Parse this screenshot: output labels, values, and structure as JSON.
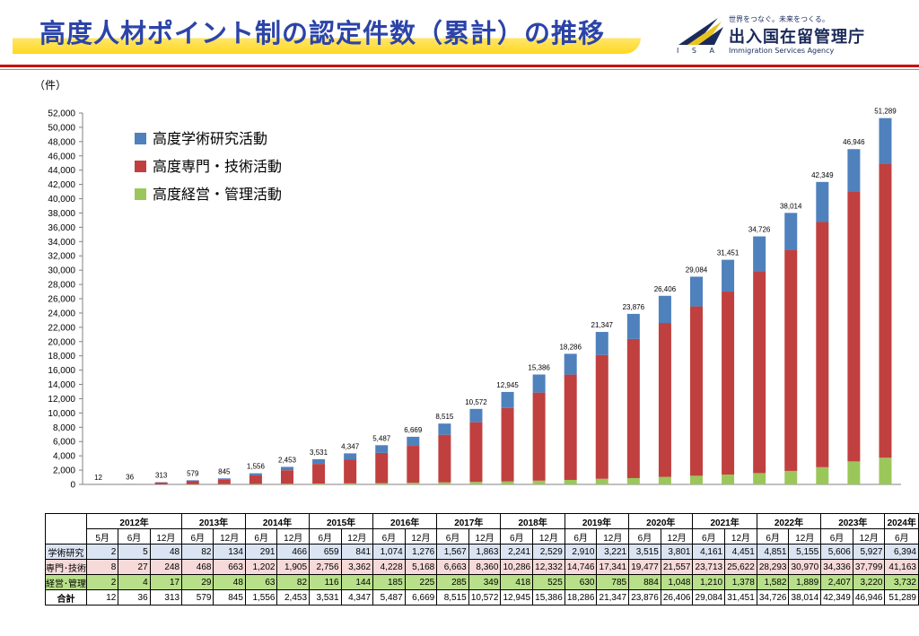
{
  "header": {
    "title": "高度人材ポイント制の認定件数（累計）の推移",
    "logo_isa": "I S A",
    "logo_tagline": "世界をつなぐ。未来をつくる。",
    "logo_name": "出入国在留管理庁",
    "logo_english": "Immigration Services Agency"
  },
  "unit_label": "（件）",
  "chart_data": {
    "type": "bar",
    "stacked": true,
    "ylim": [
      0,
      52000
    ],
    "ytick_step": 2000,
    "grid": false,
    "legend_position": "top-left",
    "categories": [
      "2012-5",
      "2012-6",
      "2012-12",
      "2013-6",
      "2013-12",
      "2014-6",
      "2014-12",
      "2015-6",
      "2015-12",
      "2016-6",
      "2016-12",
      "2017-6",
      "2017-12",
      "2018-6",
      "2018-12",
      "2019-6",
      "2019-12",
      "2020-6",
      "2020-12",
      "2021-6",
      "2021-12",
      "2022-6",
      "2022-12",
      "2023-6",
      "2023-12",
      "2024-6"
    ],
    "series": [
      {
        "name": "高度経営・管理活動",
        "color": "#9bc75a",
        "values": [
          2,
          4,
          17,
          29,
          48,
          63,
          82,
          116,
          144,
          185,
          225,
          285,
          349,
          418,
          525,
          630,
          785,
          884,
          1048,
          1210,
          1378,
          1582,
          1889,
          2407,
          3220,
          3732
        ]
      },
      {
        "name": "高度専門・技術活動",
        "color": "#c0403f",
        "values": [
          8,
          27,
          248,
          468,
          663,
          1202,
          1905,
          2756,
          3362,
          4228,
          5168,
          6663,
          8360,
          10286,
          12332,
          14746,
          17341,
          19477,
          21557,
          23713,
          25622,
          28293,
          30970,
          34336,
          37799,
          41163
        ]
      },
      {
        "name": "高度学術研究活動",
        "color": "#4f81bd",
        "values": [
          2,
          5,
          48,
          82,
          134,
          291,
          466,
          659,
          841,
          1074,
          1276,
          1567,
          1863,
          2241,
          2529,
          2910,
          3221,
          3515,
          3801,
          4161,
          4451,
          4851,
          5155,
          5606,
          5927,
          6394
        ]
      }
    ],
    "totals": [
      "12",
      "36",
      "313",
      "579",
      "845",
      "1,556",
      "2,453",
      "3,531",
      "4,347",
      "5,487",
      "6,669",
      "8,515",
      "10,572",
      "12,945",
      "15,386",
      "18,286",
      "21,347",
      "23,876",
      "26,406",
      "29,084",
      "31,451",
      "34,726",
      "38,014",
      "42,349",
      "46,946",
      "51,289"
    ],
    "legend": [
      "高度学術研究活動",
      "高度専門・技術活動",
      "高度経営・管理活動"
    ]
  },
  "table": {
    "years": [
      {
        "label": "2012年",
        "span": 3
      },
      {
        "label": "2013年",
        "span": 2
      },
      {
        "label": "2014年",
        "span": 2
      },
      {
        "label": "2015年",
        "span": 2
      },
      {
        "label": "2016年",
        "span": 2
      },
      {
        "label": "2017年",
        "span": 2
      },
      {
        "label": "2018年",
        "span": 2
      },
      {
        "label": "2019年",
        "span": 2
      },
      {
        "label": "2020年",
        "span": 2
      },
      {
        "label": "2021年",
        "span": 2
      },
      {
        "label": "2022年",
        "span": 2
      },
      {
        "label": "2023年",
        "span": 2
      },
      {
        "label": "2024年",
        "span": 1
      }
    ],
    "months": [
      "5月",
      "6月",
      "12月",
      "6月",
      "12月",
      "6月",
      "12月",
      "6月",
      "12月",
      "6月",
      "12月",
      "6月",
      "12月",
      "6月",
      "12月",
      "6月",
      "12月",
      "6月",
      "12月",
      "6月",
      "12月",
      "6月",
      "12月",
      "6月",
      "12月",
      "6月"
    ],
    "rows": [
      {
        "label": "学術研究",
        "cls": "r-ac",
        "values": [
          "2",
          "5",
          "48",
          "82",
          "134",
          "291",
          "466",
          "659",
          "841",
          "1,074",
          "1,276",
          "1,567",
          "1,863",
          "2,241",
          "2,529",
          "2,910",
          "3,221",
          "3,515",
          "3,801",
          "4,161",
          "4,451",
          "4,851",
          "5,155",
          "5,606",
          "5,927",
          "6,394"
        ]
      },
      {
        "label": "専門･技術",
        "cls": "r-pr",
        "values": [
          "8",
          "27",
          "248",
          "468",
          "663",
          "1,202",
          "1,905",
          "2,756",
          "3,362",
          "4,228",
          "5,168",
          "6,663",
          "8,360",
          "10,286",
          "12,332",
          "14,746",
          "17,341",
          "19,477",
          "21,557",
          "23,713",
          "25,622",
          "28,293",
          "30,970",
          "34,336",
          "37,799",
          "41,163"
        ]
      },
      {
        "label": "経営･管理",
        "cls": "r-mg",
        "values": [
          "2",
          "4",
          "17",
          "29",
          "48",
          "63",
          "82",
          "116",
          "144",
          "185",
          "225",
          "285",
          "349",
          "418",
          "525",
          "630",
          "785",
          "884",
          "1,048",
          "1,210",
          "1,378",
          "1,582",
          "1,889",
          "2,407",
          "3,220",
          "3,732"
        ]
      },
      {
        "label": "合計",
        "cls": "r-tot",
        "values": [
          "12",
          "36",
          "313",
          "579",
          "845",
          "1,556",
          "2,453",
          "3,531",
          "4,347",
          "5,487",
          "6,669",
          "8,515",
          "10,572",
          "12,945",
          "15,386",
          "18,286",
          "21,347",
          "23,876",
          "26,406",
          "29,084",
          "31,451",
          "34,726",
          "38,014",
          "42,349",
          "46,946",
          "51,289"
        ]
      }
    ]
  }
}
